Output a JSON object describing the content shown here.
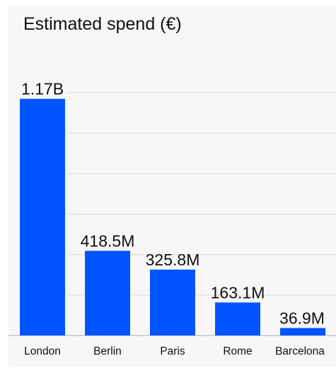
{
  "chart_data": {
    "type": "bar",
    "title": "Estimated spend (€)",
    "categories": [
      "London",
      "Berlin",
      "Paris",
      "Rome",
      "Barcelona"
    ],
    "values": [
      1170000000,
      418500000,
      325800000,
      163100000,
      36900000
    ],
    "value_labels": [
      "1.17B",
      "418.5M",
      "325.8M",
      "163.1M",
      "36.9M"
    ],
    "xlabel": "",
    "ylabel": "",
    "ylim": [
      0,
      1200000000
    ],
    "grid": true,
    "legend": "none",
    "bar_color": "#0055ff"
  }
}
